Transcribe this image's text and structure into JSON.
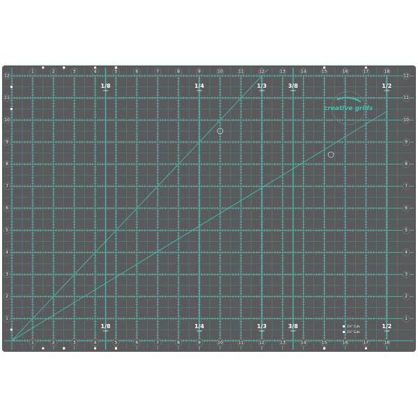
{
  "product": {
    "brand_logo": "creative grids",
    "colors": {
      "mat": "#5a5a5c",
      "grid": "#3fc1b0",
      "marks": "#ffffff"
    },
    "width_inches": 18,
    "height_inches": 12,
    "horizontal_numbers": [
      "1",
      "2",
      "3",
      "4",
      "5",
      "6",
      "7",
      "8",
      "9",
      "10",
      "11",
      "12",
      "13",
      "14",
      "15",
      "16",
      "17",
      "18"
    ],
    "vertical_numbers": [
      "1",
      "2",
      "3",
      "4",
      "5",
      "6",
      "7",
      "8",
      "9",
      "10",
      "11",
      "12"
    ],
    "yard_marks": [
      {
        "label": "1/8",
        "inches": 4.5,
        "unit": "YARD"
      },
      {
        "label": "1/4",
        "inches": 9,
        "unit": "YARD"
      },
      {
        "label": "1/3",
        "inches": 12,
        "unit": "YARD"
      },
      {
        "label": "3/8",
        "inches": 13.5,
        "unit": "YARD"
      },
      {
        "label": "1/2",
        "inches": 18,
        "unit": "YARD"
      }
    ],
    "angle_lines_degrees": [
      45,
      30
    ],
    "legend": [
      {
        "icon": "star-icon",
        "label": "1½\" Cuts"
      },
      {
        "icon": "square-icon",
        "label": "2½\" Cuts"
      }
    ]
  }
}
